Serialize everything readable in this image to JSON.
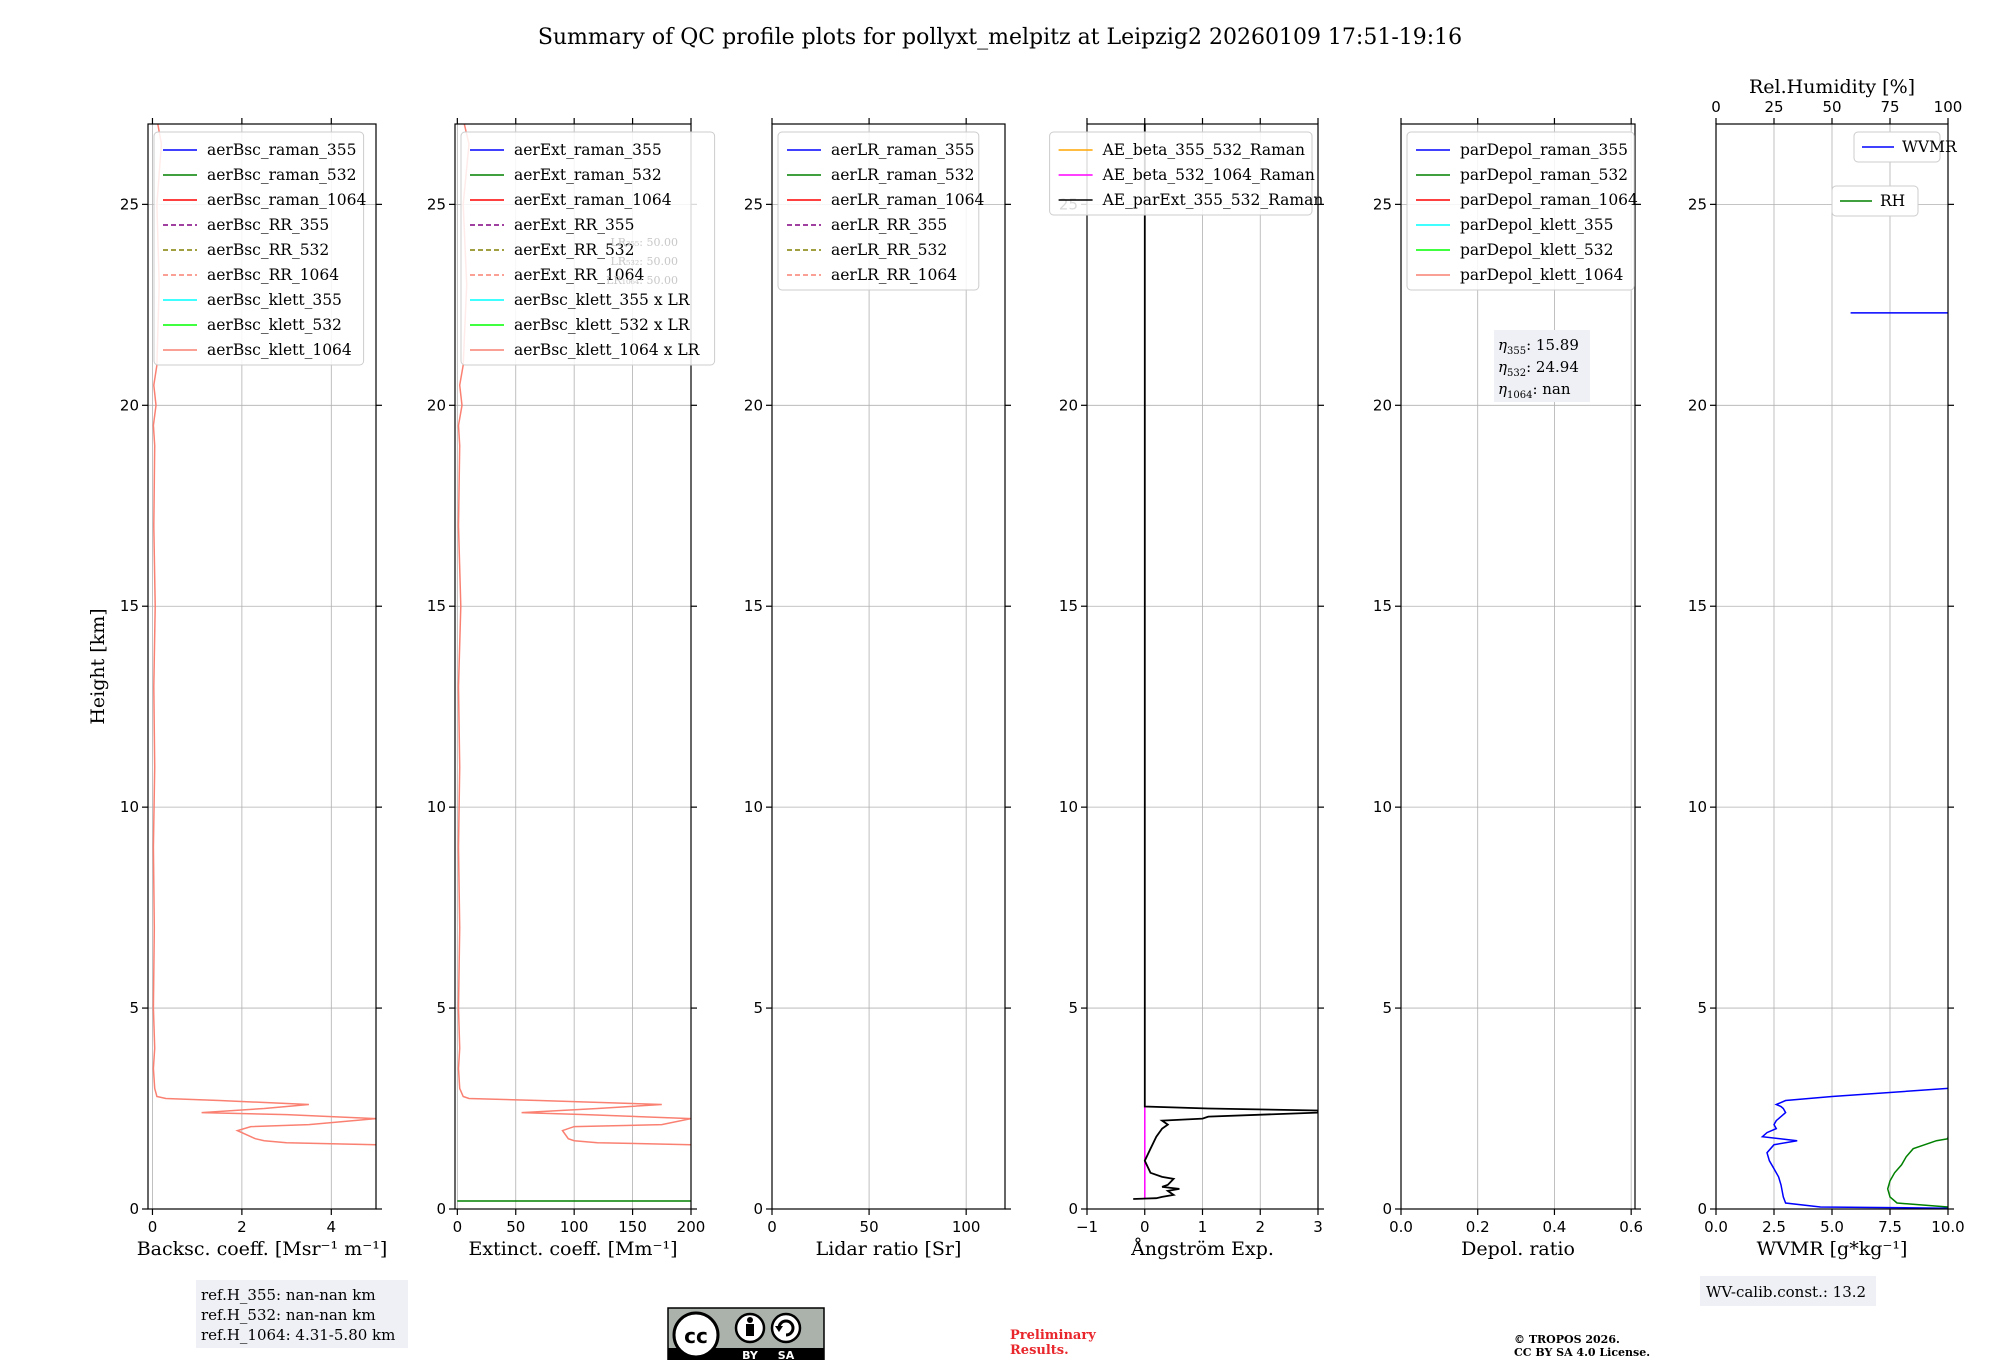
{
  "title": "Summary of QC profile plots for pollyxt_melpitz at Leipzig2 20260109 17:51-19:16",
  "colors": {
    "raman_355": "#0000ff",
    "raman_532": "#008000",
    "raman_1064": "#ff0000",
    "rr_355": "#800080",
    "rr_532": "#808000",
    "rr_1064": "#fa8072",
    "klett_355": "#00ffff",
    "klett_532": "#00ff00",
    "klett_1064": "#fa8072",
    "ae_beta_355_532": "#ffa500",
    "ae_beta_532_1064": "#ff00ff",
    "ae_parext": "#000000",
    "rh": "#008000",
    "wvmr": "#0000ff",
    "prelim": "#e8262b"
  },
  "chart_data": [
    {
      "id": "backscatter",
      "type": "line",
      "xlabel": "Backsc. coeff. [Msr⁻¹ m⁻¹]",
      "ylabel": "Height [km]",
      "xlim": [
        -0.1,
        5
      ],
      "ylim": [
        0,
        27
      ],
      "xticks": [
        0,
        2,
        4
      ],
      "yticks": [
        0,
        5,
        10,
        15,
        20,
        25
      ],
      "grid": true,
      "legend_position": "upper-left",
      "legend": [
        {
          "label": "aerBsc_raman_355",
          "color_key": "raman_355",
          "dash": "solid"
        },
        {
          "label": "aerBsc_raman_532",
          "color_key": "raman_532",
          "dash": "solid"
        },
        {
          "label": "aerBsc_raman_1064",
          "color_key": "raman_1064",
          "dash": "solid"
        },
        {
          "label": "aerBsc_RR_355",
          "color_key": "rr_355",
          "dash": "dashed"
        },
        {
          "label": "aerBsc_RR_532",
          "color_key": "rr_532",
          "dash": "dashed"
        },
        {
          "label": "aerBsc_RR_1064",
          "color_key": "rr_1064",
          "dash": "dashed"
        },
        {
          "label": "aerBsc_klett_355",
          "color_key": "klett_355",
          "dash": "solid"
        },
        {
          "label": "aerBsc_klett_532",
          "color_key": "klett_532",
          "dash": "solid"
        },
        {
          "label": "aerBsc_klett_1064",
          "color_key": "klett_1064",
          "dash": "solid"
        }
      ],
      "series": [
        {
          "name": "aerBsc_klett_1064",
          "color_key": "klett_1064",
          "x": [
            5.0,
            3.0,
            2.5,
            2.3,
            1.9,
            2.2,
            3.5,
            5.0,
            3.0,
            1.1,
            2.5,
            3.5,
            1.5,
            0.3,
            0.1,
            0.05,
            0.02,
            0.05,
            0.02,
            0.04,
            0.02,
            0.05,
            0.03,
            0.06,
            0.03,
            0.05,
            0.02,
            0.08,
            0.03,
            0.1,
            0.15,
            0.1,
            0.2,
            0.12
          ],
          "y": [
            1.6,
            1.65,
            1.7,
            1.75,
            1.95,
            2.05,
            2.1,
            2.25,
            2.35,
            2.4,
            2.5,
            2.6,
            2.7,
            2.75,
            2.8,
            3.0,
            3.5,
            4.0,
            5.0,
            7.0,
            9.0,
            11.0,
            13.0,
            15.0,
            17.0,
            19.0,
            19.5,
            20.0,
            20.5,
            21.0,
            23.0,
            25.0,
            26.5,
            27.0
          ]
        }
      ],
      "annotation": [
        "ref.H_355: nan-nan km",
        "ref.H_532: nan-nan km",
        "ref.H_1064: 4.31-5.80 km"
      ]
    },
    {
      "id": "extinction",
      "type": "line",
      "xlabel": "Extinct. coeff. [Mm⁻¹]",
      "xlim": [
        -2,
        200
      ],
      "ylim": [
        0,
        27
      ],
      "xticks": [
        0,
        50,
        100,
        150,
        200
      ],
      "yticks": [
        0,
        5,
        10,
        15,
        20,
        25
      ],
      "grid": true,
      "legend_position": "upper-left",
      "legend": [
        {
          "label": "aerExt_raman_355",
          "color_key": "raman_355",
          "dash": "solid"
        },
        {
          "label": "aerExt_raman_532",
          "color_key": "raman_532",
          "dash": "solid"
        },
        {
          "label": "aerExt_raman_1064",
          "color_key": "raman_1064",
          "dash": "solid"
        },
        {
          "label": "aerExt_RR_355",
          "color_key": "rr_355",
          "dash": "dashed"
        },
        {
          "label": "aerExt_RR_532",
          "color_key": "rr_532",
          "dash": "dashed"
        },
        {
          "label": "aerExt_RR_1064",
          "color_key": "rr_1064",
          "dash": "dashed"
        },
        {
          "label": "aerBsc_klett_355 x LR",
          "color_key": "klett_355",
          "dash": "solid"
        },
        {
          "label": "aerBsc_klett_532 x LR",
          "color_key": "klett_532",
          "dash": "solid"
        },
        {
          "label": "aerBsc_klett_1064 x LR",
          "color_key": "klett_1064",
          "dash": "solid"
        }
      ],
      "series": [
        {
          "name": "aerBsc_klett_1064 x LR",
          "color_key": "klett_1064",
          "x": [
            200,
            120,
            100,
            95,
            90,
            100,
            175,
            200,
            110,
            55,
            120,
            175,
            70,
            10,
            5,
            2,
            1,
            2,
            1,
            2,
            1,
            2,
            1,
            3,
            1,
            2,
            1,
            4,
            2,
            5,
            8,
            5,
            10,
            6
          ],
          "y": [
            1.6,
            1.65,
            1.7,
            1.75,
            1.95,
            2.05,
            2.1,
            2.25,
            2.35,
            2.4,
            2.5,
            2.6,
            2.7,
            2.75,
            2.8,
            3.0,
            3.5,
            4.0,
            5.0,
            7.0,
            9.0,
            11.0,
            13.0,
            15.0,
            17.0,
            19.0,
            19.5,
            20.0,
            20.5,
            21.0,
            23.0,
            25.0,
            26.5,
            27.0
          ]
        },
        {
          "name": "aerExt_raman_532",
          "color_key": "raman_532",
          "x": [
            0,
            200
          ],
          "y": [
            0.2,
            0.2
          ]
        }
      ],
      "faint_annotation": [
        "LR₃₅₅: 50.00",
        "LR₅₃₂: 50.00",
        "LR₁₀₆₄: 50.00"
      ]
    },
    {
      "id": "lidar_ratio",
      "type": "line",
      "xlabel": "Lidar ratio [Sr]",
      "xlim": [
        0,
        120
      ],
      "ylim": [
        0,
        27
      ],
      "xticks": [
        0,
        50,
        100
      ],
      "yticks": [
        0,
        5,
        10,
        15,
        20,
        25
      ],
      "grid": true,
      "legend_position": "upper-left",
      "legend": [
        {
          "label": "aerLR_raman_355",
          "color_key": "raman_355",
          "dash": "solid"
        },
        {
          "label": "aerLR_raman_532",
          "color_key": "raman_532",
          "dash": "solid"
        },
        {
          "label": "aerLR_raman_1064",
          "color_key": "raman_1064",
          "dash": "solid"
        },
        {
          "label": "aerLR_RR_355",
          "color_key": "rr_355",
          "dash": "dashed"
        },
        {
          "label": "aerLR_RR_532",
          "color_key": "rr_532",
          "dash": "dashed"
        },
        {
          "label": "aerLR_RR_1064",
          "color_key": "rr_1064",
          "dash": "dashed"
        }
      ],
      "series": []
    },
    {
      "id": "angstrom",
      "type": "line",
      "xlabel": "Ångström Exp.",
      "xlim": [
        -1,
        3
      ],
      "ylim": [
        0,
        27
      ],
      "xticks": [
        -1,
        0,
        1,
        2,
        3
      ],
      "yticks": [
        0,
        5,
        10,
        15,
        20,
        25
      ],
      "grid": true,
      "legend_position": "upper-right",
      "legend": [
        {
          "label": "AE_beta_355_532_Raman",
          "color_key": "ae_beta_355_532",
          "dash": "solid"
        },
        {
          "label": "AE_beta_532_1064_Raman",
          "color_key": "ae_beta_532_1064",
          "dash": "solid"
        },
        {
          "label": "AE_parExt_355_532_Raman",
          "color_key": "ae_parext",
          "dash": "solid"
        }
      ],
      "series": [
        {
          "name": "AE_beta_532_1064_Raman",
          "color_key": "ae_beta_532_1064",
          "x": [
            0,
            0
          ],
          "y": [
            0.25,
            2.55
          ]
        },
        {
          "name": "AE_parExt_355_532_Raman",
          "color_key": "ae_parext",
          "x": [
            0,
            0,
            1.1,
            3.0,
            3.0,
            1.1,
            1.0,
            0.3,
            0.4,
            0.3,
            0.2,
            0.1,
            0.0,
            0.1,
            0.3,
            0.5,
            0.4,
            0.3,
            0.6,
            0.4,
            0.5,
            0.3,
            0.2,
            -0.2
          ],
          "y": [
            27,
            2.55,
            2.5,
            2.45,
            2.4,
            2.3,
            2.25,
            2.2,
            2.1,
            2.0,
            1.8,
            1.5,
            1.2,
            0.9,
            0.8,
            0.75,
            0.6,
            0.55,
            0.5,
            0.45,
            0.35,
            0.3,
            0.27,
            0.25
          ]
        }
      ]
    },
    {
      "id": "depol",
      "type": "line",
      "xlabel": "Depol. ratio",
      "xlim": [
        0,
        0.61
      ],
      "ylim": [
        0,
        27
      ],
      "xticks": [
        0.0,
        0.2,
        0.4,
        0.6
      ],
      "yticks": [
        0,
        5,
        10,
        15,
        20,
        25
      ],
      "grid": true,
      "legend_position": "upper-left",
      "legend": [
        {
          "label": "parDepol_raman_355",
          "color_key": "raman_355",
          "dash": "solid"
        },
        {
          "label": "parDepol_raman_532",
          "color_key": "raman_532",
          "dash": "solid"
        },
        {
          "label": "parDepol_raman_1064",
          "color_key": "raman_1064",
          "dash": "solid"
        },
        {
          "label": "parDepol_klett_355",
          "color_key": "klett_355",
          "dash": "solid"
        },
        {
          "label": "parDepol_klett_532",
          "color_key": "klett_532",
          "dash": "solid"
        },
        {
          "label": "parDepol_klett_1064",
          "color_key": "klett_1064",
          "dash": "solid"
        }
      ],
      "series": [],
      "annotation": [
        {
          "sym": "η",
          "sub": "355",
          "rest": ": 15.89"
        },
        {
          "sym": "η",
          "sub": "532",
          "rest": ": 24.94"
        },
        {
          "sym": "η",
          "sub": "1064",
          "rest": ": nan"
        }
      ]
    },
    {
      "id": "wvmr",
      "type": "line",
      "xlabel": "WVMR [g*kg⁻¹]",
      "xlim": [
        0,
        10
      ],
      "ylim": [
        0,
        27
      ],
      "xticks": [
        0.0,
        2.5,
        5.0,
        7.5,
        10.0
      ],
      "xtick_labels": [
        "0.0",
        "2.5",
        "5.0",
        "7.5",
        "10.0"
      ],
      "yticks": [
        0,
        5,
        10,
        15,
        20,
        25
      ],
      "grid": true,
      "top_axis": {
        "label": "Rel.Humidity [%]",
        "lim": [
          0,
          100
        ],
        "ticks": [
          0,
          25,
          50,
          75,
          100
        ]
      },
      "legend": [
        {
          "label": "WVMR",
          "color_key": "wvmr",
          "dash": "solid",
          "position": "upper-right"
        },
        {
          "label": "RH",
          "color_key": "rh",
          "dash": "solid",
          "position": "upper-right-2"
        }
      ],
      "series": [
        {
          "name": "WVMR",
          "color_key": "wvmr",
          "x": [
            10,
            4.5,
            3.0,
            2.9,
            2.8,
            2.7,
            2.5,
            2.3,
            2.2,
            2.5,
            3.5,
            2.0,
            2.2,
            2.6,
            2.5,
            2.6,
            2.8,
            3.0,
            2.9,
            2.8,
            2.6,
            3.0,
            5.0,
            10
          ],
          "y": [
            0.02,
            0.05,
            0.15,
            0.3,
            0.6,
            0.8,
            1.0,
            1.2,
            1.4,
            1.6,
            1.7,
            1.8,
            1.9,
            2.0,
            2.1,
            2.2,
            2.3,
            2.4,
            2.5,
            2.55,
            2.6,
            2.7,
            2.8,
            3.0
          ]
        },
        {
          "name": "WVMR_upper",
          "color_key": "wvmr",
          "x": [
            5.8,
            10
          ],
          "y": [
            22.3,
            22.3
          ]
        },
        {
          "name": "RH",
          "color_key": "rh",
          "x": [
            10,
            7.8,
            7.5,
            7.4,
            7.5,
            7.7,
            8.0,
            8.2,
            8.5,
            9.0,
            9.5,
            10,
            10
          ],
          "y": [
            0.05,
            0.15,
            0.3,
            0.5,
            0.7,
            0.9,
            1.1,
            1.3,
            1.5,
            1.6,
            1.7,
            1.75,
            1.8
          ]
        }
      ],
      "annotation": [
        "WV-calib.const.: 13.2"
      ]
    }
  ],
  "footer": {
    "cc_license_text": [
      "BY",
      "SA"
    ],
    "preliminary": [
      "Preliminary",
      "Results."
    ],
    "copyright": [
      "© TROPOS 2026.",
      "CC BY SA 4.0 License."
    ]
  }
}
